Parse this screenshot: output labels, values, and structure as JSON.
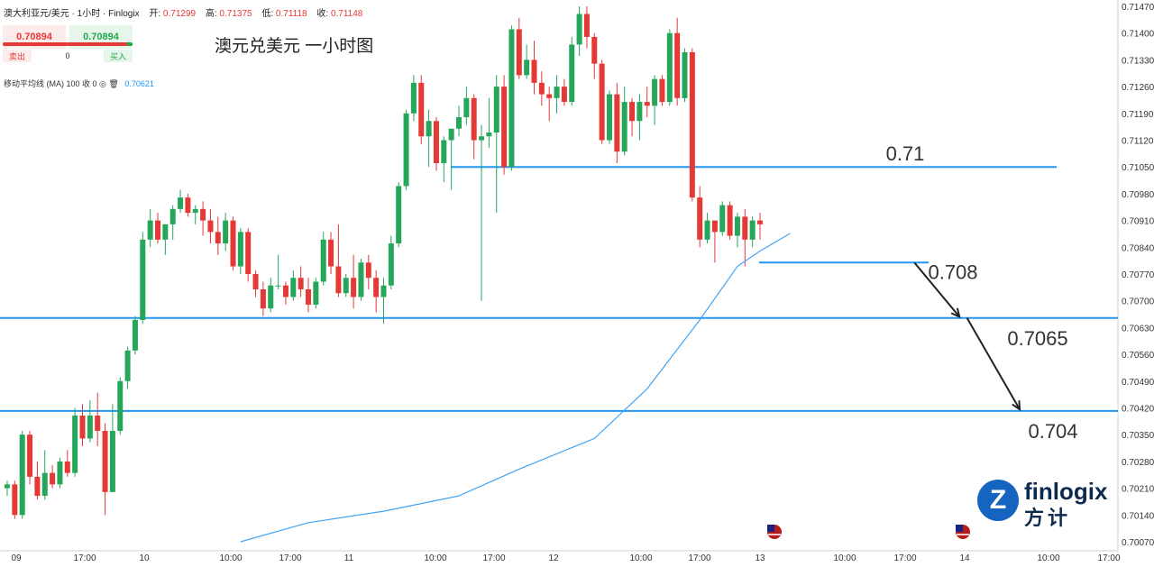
{
  "header": {
    "symbol": "澳大利亚元/美元 · 1小时 · Finlogix",
    "open_label": "开:",
    "open": "0.71299",
    "high_label": "高:",
    "high": "0.71375",
    "low_label": "低:",
    "low": "0.71118",
    "close_label": "收:",
    "close": "0.71148"
  },
  "trade": {
    "sell_price": "0.70894",
    "buy_price": "0.70894",
    "sell_label": "卖出",
    "buy_label": "买入",
    "quantity": "0"
  },
  "indicator": {
    "label": "移动平均线 (MA)  100 收 0",
    "value": "0.70621"
  },
  "colors": {
    "up": "#26a65b",
    "down": "#e53935",
    "level_line": "#2196f3",
    "ma_line": "#42a5f5",
    "arrow": "#222222"
  },
  "logo": {
    "word": "finlogix",
    "cn": "方计",
    "badge": "Z"
  },
  "chart_data": {
    "type": "candlestick",
    "title": "澳元兑美元 一小时图",
    "y_ticks": [
      "0.71470",
      "0.71400",
      "0.71330",
      "0.71260",
      "0.71190",
      "0.71120",
      "0.71050",
      "0.70980",
      "0.70910",
      "0.70840",
      "0.70770",
      "0.70700",
      "0.70630",
      "0.70560",
      "0.70490",
      "0.70420",
      "0.70350",
      "0.70280",
      "0.70210",
      "0.70140",
      "0.70070"
    ],
    "x_ticks": [
      "09",
      "17:00",
      "10",
      "10:00",
      "17:00",
      "11",
      "10:00",
      "17:00",
      "12",
      "10:00",
      "17:00",
      "13",
      "10:00",
      "17:00",
      "14",
      "10:00",
      "17:00"
    ],
    "ylim": [
      0.7005,
      0.7148
    ],
    "levels": [
      {
        "label": "0.71",
        "price": 0.7105
      },
      {
        "label": "0.708",
        "price": 0.708
      },
      {
        "label": "0.7065",
        "price": 0.70655
      },
      {
        "label": "0.704",
        "price": 0.70412
      }
    ],
    "candles": [
      [
        0.7021,
        0.7023,
        0.7019,
        0.7022
      ],
      [
        0.7022,
        0.7023,
        0.7013,
        0.7014
      ],
      [
        0.7014,
        0.7036,
        0.7013,
        0.7035
      ],
      [
        0.7035,
        0.7036,
        0.7022,
        0.7024
      ],
      [
        0.7024,
        0.7028,
        0.7018,
        0.7019
      ],
      [
        0.7019,
        0.7031,
        0.7018,
        0.7025
      ],
      [
        0.7025,
        0.7027,
        0.7021,
        0.7022
      ],
      [
        0.7022,
        0.7029,
        0.7021,
        0.7028
      ],
      [
        0.7028,
        0.7031,
        0.7024,
        0.7025
      ],
      [
        0.7025,
        0.7042,
        0.7024,
        0.704
      ],
      [
        0.704,
        0.7043,
        0.7032,
        0.7034
      ],
      [
        0.7034,
        0.7044,
        0.7033,
        0.704
      ],
      [
        0.704,
        0.7046,
        0.7032,
        0.7036
      ],
      [
        0.7036,
        0.7038,
        0.7014,
        0.702
      ],
      [
        0.702,
        0.7043,
        0.702,
        0.7036
      ],
      [
        0.7036,
        0.705,
        0.7035,
        0.7049
      ],
      [
        0.7049,
        0.7058,
        0.7047,
        0.7057
      ],
      [
        0.7057,
        0.7066,
        0.7056,
        0.7065
      ],
      [
        0.7065,
        0.7088,
        0.7064,
        0.7086
      ],
      [
        0.7086,
        0.7094,
        0.7084,
        0.7091
      ],
      [
        0.7091,
        0.7093,
        0.7085,
        0.7086
      ],
      [
        0.7086,
        0.709,
        0.7082,
        0.709
      ],
      [
        0.709,
        0.7095,
        0.7086,
        0.7094
      ],
      [
        0.7094,
        0.7099,
        0.7093,
        0.7097
      ],
      [
        0.7097,
        0.7098,
        0.7092,
        0.7093
      ],
      [
        0.7093,
        0.7095,
        0.709,
        0.7094
      ],
      [
        0.7094,
        0.7096,
        0.7087,
        0.7091
      ],
      [
        0.7091,
        0.7094,
        0.7085,
        0.7088
      ],
      [
        0.7088,
        0.7092,
        0.7082,
        0.7085
      ],
      [
        0.7085,
        0.7093,
        0.7083,
        0.7091
      ],
      [
        0.7091,
        0.7092,
        0.7078,
        0.7079
      ],
      [
        0.7079,
        0.7089,
        0.7077,
        0.7088
      ],
      [
        0.7088,
        0.7089,
        0.7075,
        0.7077
      ],
      [
        0.7077,
        0.7078,
        0.7071,
        0.7073
      ],
      [
        0.7073,
        0.7075,
        0.7066,
        0.7068
      ],
      [
        0.7068,
        0.7076,
        0.7067,
        0.7074
      ],
      [
        0.7074,
        0.7082,
        0.7073,
        0.7074
      ],
      [
        0.7074,
        0.7075,
        0.7069,
        0.7071
      ],
      [
        0.7071,
        0.7078,
        0.707,
        0.7076
      ],
      [
        0.7076,
        0.7079,
        0.7071,
        0.7073
      ],
      [
        0.7073,
        0.7076,
        0.7067,
        0.7069
      ],
      [
        0.7069,
        0.7076,
        0.7068,
        0.7075
      ],
      [
        0.7075,
        0.7088,
        0.7074,
        0.7086
      ],
      [
        0.7086,
        0.7088,
        0.7077,
        0.7079
      ],
      [
        0.7079,
        0.709,
        0.7071,
        0.7072
      ],
      [
        0.7072,
        0.7077,
        0.7071,
        0.7076
      ],
      [
        0.7076,
        0.7082,
        0.7068,
        0.7071
      ],
      [
        0.7071,
        0.7081,
        0.707,
        0.708
      ],
      [
        0.708,
        0.7082,
        0.7073,
        0.7076
      ],
      [
        0.7076,
        0.7078,
        0.7067,
        0.7071
      ],
      [
        0.7071,
        0.7076,
        0.7064,
        0.7074
      ],
      [
        0.7074,
        0.7087,
        0.7073,
        0.7085
      ],
      [
        0.7085,
        0.7101,
        0.7084,
        0.71
      ],
      [
        0.71,
        0.712,
        0.7099,
        0.7119
      ],
      [
        0.7119,
        0.7129,
        0.7117,
        0.7127
      ],
      [
        0.7127,
        0.7129,
        0.7111,
        0.7113
      ],
      [
        0.7113,
        0.712,
        0.7105,
        0.7117
      ],
      [
        0.7117,
        0.7118,
        0.7104,
        0.7106
      ],
      [
        0.7106,
        0.7113,
        0.7101,
        0.7112
      ],
      [
        0.7112,
        0.7115,
        0.7099,
        0.7115
      ],
      [
        0.7115,
        0.7121,
        0.7113,
        0.7118
      ],
      [
        0.7118,
        0.7126,
        0.7116,
        0.7123
      ],
      [
        0.7123,
        0.7124,
        0.7107,
        0.7112
      ],
      [
        0.7112,
        0.7116,
        0.707,
        0.7113
      ],
      [
        0.7113,
        0.7123,
        0.711,
        0.7114
      ],
      [
        0.7114,
        0.7129,
        0.7093,
        0.7126
      ],
      [
        0.7126,
        0.7129,
        0.7103,
        0.7105
      ],
      [
        0.7105,
        0.7142,
        0.7104,
        0.7141
      ],
      [
        0.7141,
        0.7144,
        0.7128,
        0.7129
      ],
      [
        0.7129,
        0.7137,
        0.7128,
        0.7133
      ],
      [
        0.7133,
        0.7138,
        0.7124,
        0.7127
      ],
      [
        0.7127,
        0.713,
        0.7121,
        0.7124
      ],
      [
        0.7124,
        0.7126,
        0.7117,
        0.7123
      ],
      [
        0.7123,
        0.7129,
        0.7119,
        0.7126
      ],
      [
        0.7126,
        0.7128,
        0.7121,
        0.7122
      ],
      [
        0.7122,
        0.7139,
        0.7121,
        0.7137
      ],
      [
        0.7137,
        0.7147,
        0.7134,
        0.7145
      ],
      [
        0.7145,
        0.7147,
        0.7136,
        0.7139
      ],
      [
        0.7139,
        0.714,
        0.7128,
        0.7132
      ],
      [
        0.7132,
        0.7133,
        0.7111,
        0.7112
      ],
      [
        0.7112,
        0.7125,
        0.7111,
        0.7124
      ],
      [
        0.7124,
        0.7127,
        0.7106,
        0.7109
      ],
      [
        0.7109,
        0.7126,
        0.7108,
        0.7122
      ],
      [
        0.7122,
        0.7123,
        0.7113,
        0.7117
      ],
      [
        0.7117,
        0.7124,
        0.7112,
        0.7122
      ],
      [
        0.7122,
        0.7126,
        0.7118,
        0.7121
      ],
      [
        0.7121,
        0.7129,
        0.7116,
        0.7128
      ],
      [
        0.7128,
        0.7129,
        0.7121,
        0.7122
      ],
      [
        0.7122,
        0.7141,
        0.7121,
        0.714
      ],
      [
        0.714,
        0.7144,
        0.7121,
        0.7123
      ],
      [
        0.7123,
        0.7136,
        0.7122,
        0.7135
      ],
      [
        0.7135,
        0.7136,
        0.7096,
        0.7097
      ],
      [
        0.7097,
        0.71,
        0.7084,
        0.7086
      ],
      [
        0.7086,
        0.7093,
        0.7085,
        0.7091
      ],
      [
        0.7091,
        0.7091,
        0.708,
        0.7088
      ],
      [
        0.7088,
        0.7096,
        0.7087,
        0.7095
      ],
      [
        0.7095,
        0.7096,
        0.7086,
        0.7087
      ],
      [
        0.7087,
        0.7093,
        0.7084,
        0.7092
      ],
      [
        0.7092,
        0.7094,
        0.7079,
        0.7086
      ],
      [
        0.7086,
        0.7092,
        0.7084,
        0.7091
      ],
      [
        0.7091,
        0.7093,
        0.7086,
        0.709
      ]
    ],
    "ma": {
      "name": "MA 100",
      "points": [
        [
          31,
          0.7007
        ],
        [
          40,
          0.7012
        ],
        [
          50,
          0.7015
        ],
        [
          60,
          0.7019
        ],
        [
          68,
          0.7026
        ],
        [
          78,
          0.7034
        ],
        [
          85,
          0.7047
        ],
        [
          92,
          0.7065
        ],
        [
          97,
          0.7079
        ],
        [
          100,
          0.7083
        ],
        [
          104,
          0.70876
        ]
      ]
    },
    "arrows": [
      [
        [
          120.5,
          0.708
        ],
        [
          126.5,
          0.70658
        ]
      ],
      [
        [
          127.5,
          0.70655
        ],
        [
          134.5,
          0.70416
        ]
      ]
    ]
  }
}
